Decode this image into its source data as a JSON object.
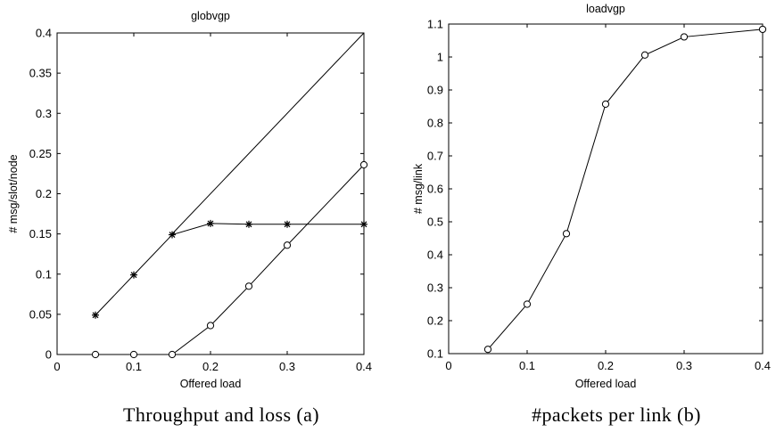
{
  "chart_data": [
    {
      "type": "line",
      "title": "globvgp",
      "xlabel": "Offered load",
      "ylabel": "# msg/slot/node",
      "caption": "Throughput and loss (a)",
      "xlim": [
        0,
        0.4
      ],
      "ylim": [
        0,
        0.4
      ],
      "xticks": [
        0,
        0.1,
        0.2,
        0.3,
        0.4
      ],
      "xtick_labels": [
        "0",
        "0.1",
        "0.2",
        "0.3",
        "0.4"
      ],
      "yticks": [
        0,
        0.05,
        0.1,
        0.15,
        0.2,
        0.25,
        0.3,
        0.35,
        0.4
      ],
      "ytick_labels": [
        "0",
        "0.05",
        "0.1",
        "0.15",
        "0.2",
        "0.25",
        "0.3",
        "0.35",
        "0.4"
      ],
      "grid": false,
      "series": [
        {
          "marker": "none",
          "x": [
            0.15,
            0.4
          ],
          "y": [
            0.15,
            0.4
          ]
        },
        {
          "marker": "asterisk",
          "x": [
            0.05,
            0.1,
            0.15,
            0.2,
            0.25,
            0.3,
            0.4
          ],
          "y": [
            0.049,
            0.099,
            0.149,
            0.163,
            0.162,
            0.162,
            0.162
          ]
        },
        {
          "marker": "circle",
          "x": [
            0.05,
            0.1,
            0.15,
            0.2,
            0.25,
            0.3,
            0.4
          ],
          "y": [
            0.0,
            0.0,
            0.0,
            0.036,
            0.085,
            0.136,
            0.236
          ]
        }
      ]
    },
    {
      "type": "line",
      "title": "loadvgp",
      "xlabel": "Offered load",
      "ylabel": "# msg/link",
      "caption": "#packets per link (b)",
      "xlim": [
        0,
        0.4
      ],
      "ylim": [
        0.1,
        1.1
      ],
      "xticks": [
        0,
        0.1,
        0.2,
        0.3,
        0.4
      ],
      "xtick_labels": [
        "0",
        "0.1",
        "0.2",
        "0.3",
        "0.4"
      ],
      "yticks": [
        0.1,
        0.2,
        0.3,
        0.4,
        0.5,
        0.6,
        0.7,
        0.8,
        0.9,
        1,
        1.1
      ],
      "ytick_labels": [
        "0.1",
        "0.2",
        "0.3",
        "0.4",
        "0.5",
        "0.6",
        "0.7",
        "0.8",
        "0.9",
        "1",
        "1.1"
      ],
      "grid": false,
      "series": [
        {
          "marker": "circle",
          "x": [
            0.05,
            0.1,
            0.15,
            0.2,
            0.25,
            0.3,
            0.4
          ],
          "y": [
            0.113,
            0.25,
            0.464,
            0.857,
            1.006,
            1.061,
            1.084
          ]
        }
      ]
    }
  ]
}
